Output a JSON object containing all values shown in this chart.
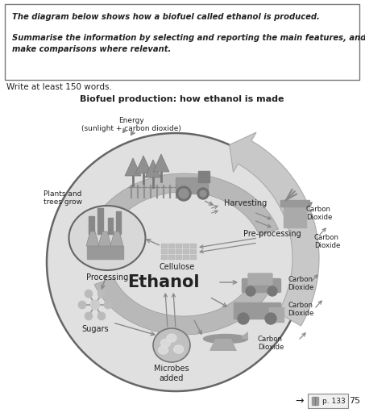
{
  "title": "Biofuel production: how ethanol is made",
  "prompt_line1": "The diagram below shows how a biofuel called ethanol is produced.",
  "prompt_line2": "Summarise the information by selecting and reporting the main features, and",
  "prompt_line3": "make comparisons where relevant.",
  "write_prompt": "Write at least 150 words.",
  "footer_arrow": "→",
  "footer_page": "p. 133",
  "footer_num": "75",
  "bg_color": "#ffffff",
  "labels": {
    "energy": "Energy\n(sunlight + carbon dioxide)",
    "plants": "Plants and\ntrees grow",
    "harvesting": "Harvesting",
    "carbon_top": "Carbon\nDioxide",
    "preprocessing": "Pre-processing",
    "carbon_mid": "Carbon\nDioxide",
    "cellulose": "Cellulose",
    "processing": "Processing",
    "ethanol": "Ethanol",
    "sugars": "Sugars",
    "microbes": "Microbes\nadded",
    "carbon_car": "Carbon\nDioxide",
    "carbon_truck": "Carbon\nDioxide",
    "carbon_plane": "Carbon\nDioxide"
  }
}
